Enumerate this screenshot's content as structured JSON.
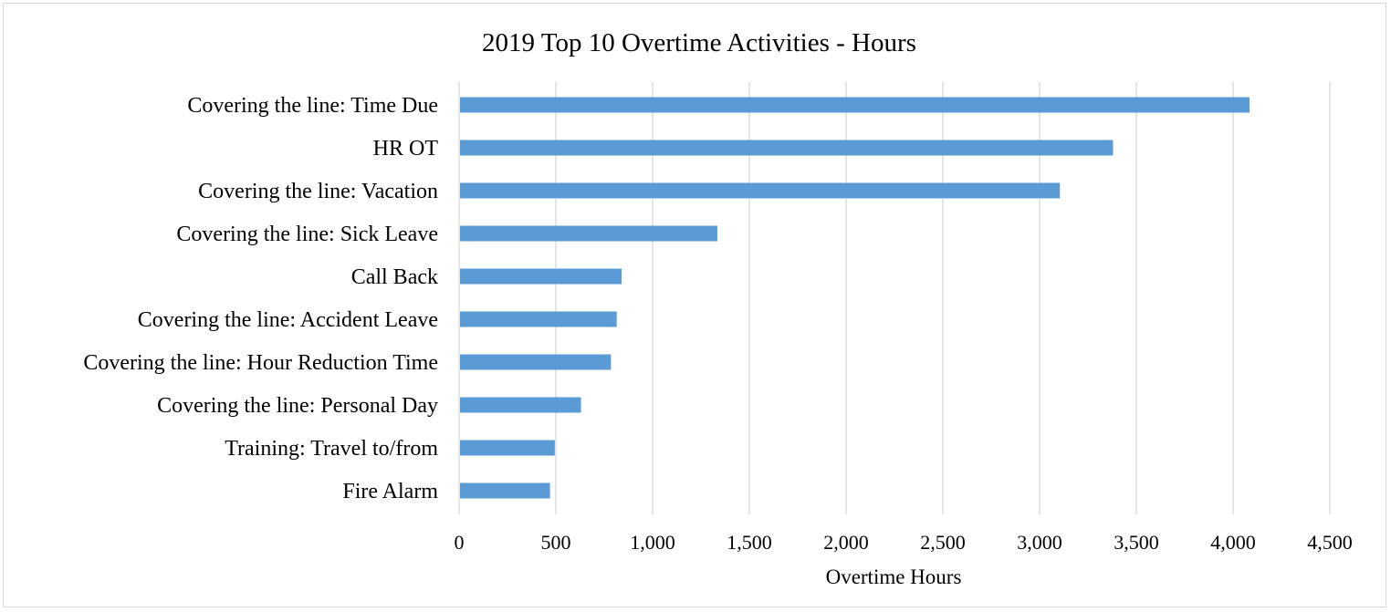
{
  "chart_data": {
    "type": "bar",
    "orientation": "horizontal",
    "title": "2019 Top 10 Overtime Activities - Hours",
    "xlabel": "Overtime Hours",
    "ylabel": "",
    "xlim": [
      0,
      4500
    ],
    "x_ticks": [
      "0",
      "500",
      "1,000",
      "1,500",
      "2,000",
      "2,500",
      "3,000",
      "3,500",
      "4,000",
      "4,500"
    ],
    "grid": true,
    "bar_color": "#5b9bd5",
    "categories": [
      "Covering the line: Time Due",
      "HR OT",
      "Covering the line: Vacation",
      "Covering the line: Sick Leave",
      "Call Back",
      "Covering the line: Accident Leave",
      "Covering the line: Hour Reduction Time",
      "Covering the line: Personal Day",
      "Training: Travel to/from ",
      "Fire Alarm"
    ],
    "values": [
      4080,
      3375,
      3100,
      1330,
      835,
      810,
      780,
      625,
      490,
      465
    ]
  }
}
